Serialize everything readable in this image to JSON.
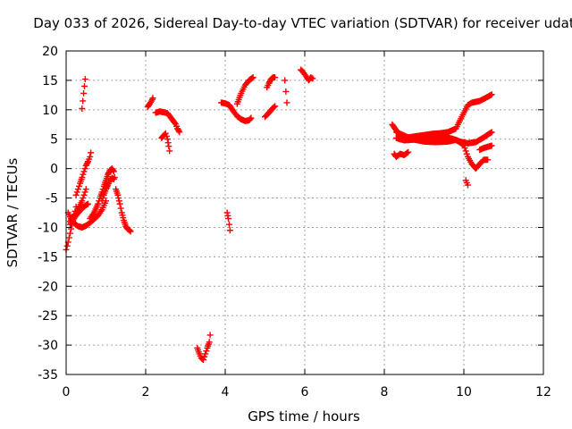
{
  "chart_data": {
    "type": "scatter",
    "title": "Day 033 of 2026, Sidereal Day-to-day VTEC variation (SDTVAR) for receiver udat",
    "xlabel": "GPS time / hours",
    "ylabel": "SDTVAR / TECUs",
    "xlim": [
      0,
      12
    ],
    "ylim": [
      -35,
      20
    ],
    "x_ticks": [
      0,
      2,
      4,
      6,
      8,
      10,
      12
    ],
    "y_ticks": [
      -35,
      -30,
      -25,
      -20,
      -15,
      -10,
      -5,
      0,
      5,
      10,
      15,
      20
    ],
    "grid": true,
    "marker": "plus",
    "color": "#ff0000",
    "tracks": [
      [
        [
          0.0,
          -13.8
        ],
        [
          0.05,
          -12.5
        ],
        [
          0.1,
          -11.0
        ],
        [
          0.15,
          -9.5
        ],
        [
          0.2,
          -8.0
        ],
        [
          0.25,
          -6.5
        ]
      ],
      [
        [
          0.05,
          -7.5
        ],
        [
          0.1,
          -8.2
        ],
        [
          0.15,
          -8.8
        ],
        [
          0.2,
          -9.3
        ],
        [
          0.3,
          -9.8
        ],
        [
          0.4,
          -10.0
        ],
        [
          0.5,
          -9.7
        ],
        [
          0.6,
          -9.2
        ],
        [
          0.7,
          -8.6
        ],
        [
          0.8,
          -8.0
        ],
        [
          0.9,
          -7.0
        ],
        [
          1.0,
          -5.5
        ]
      ],
      [
        [
          0.1,
          -9.5
        ],
        [
          0.2,
          -8.5
        ],
        [
          0.3,
          -7.5
        ],
        [
          0.4,
          -6.8
        ],
        [
          0.5,
          -6.2
        ],
        [
          0.55,
          -6.0
        ]
      ],
      [
        [
          0.25,
          -4.5
        ],
        [
          0.3,
          -3.5
        ],
        [
          0.35,
          -2.5
        ],
        [
          0.4,
          -1.5
        ],
        [
          0.45,
          -0.5
        ],
        [
          0.5,
          0.5
        ],
        [
          0.55,
          1.2
        ],
        [
          0.6,
          2.0
        ],
        [
          0.62,
          2.7
        ]
      ],
      [
        [
          0.1,
          -9.0
        ],
        [
          0.2,
          -8.0
        ],
        [
          0.3,
          -7.0
        ],
        [
          0.4,
          -5.5
        ],
        [
          0.5,
          -3.5
        ]
      ],
      [
        [
          0.4,
          10.2
        ],
        [
          0.42,
          11.5
        ],
        [
          0.44,
          12.8
        ],
        [
          0.46,
          14.0
        ],
        [
          0.48,
          15.2
        ]
      ],
      [
        [
          0.6,
          -8.5
        ],
        [
          0.7,
          -7.5
        ],
        [
          0.8,
          -6.0
        ],
        [
          0.85,
          -5.0
        ],
        [
          0.9,
          -4.0
        ],
        [
          0.95,
          -3.0
        ],
        [
          1.0,
          -2.0
        ],
        [
          1.05,
          -1.0
        ],
        [
          1.1,
          -0.3
        ],
        [
          1.15,
          0.0
        ],
        [
          1.2,
          -0.5
        ],
        [
          1.22,
          -1.5
        ]
      ],
      [
        [
          0.9,
          -5.5
        ],
        [
          0.95,
          -4.5
        ],
        [
          1.0,
          -3.5
        ],
        [
          1.05,
          -2.8
        ],
        [
          1.1,
          -2.0
        ],
        [
          1.15,
          -1.6
        ],
        [
          1.2,
          -1.8
        ]
      ],
      [
        [
          1.25,
          -3.5
        ],
        [
          1.3,
          -4.5
        ],
        [
          1.35,
          -6.0
        ],
        [
          1.4,
          -7.5
        ],
        [
          1.45,
          -8.8
        ],
        [
          1.5,
          -9.8
        ],
        [
          1.55,
          -10.3
        ],
        [
          1.6,
          -10.5
        ],
        [
          1.62,
          -10.7
        ]
      ],
      [
        [
          2.05,
          10.5
        ],
        [
          2.1,
          11.0
        ],
        [
          2.15,
          11.5
        ],
        [
          2.18,
          12.0
        ]
      ],
      [
        [
          2.25,
          9.5
        ],
        [
          2.35,
          9.7
        ],
        [
          2.45,
          9.6
        ],
        [
          2.55,
          9.4
        ],
        [
          2.65,
          8.5
        ],
        [
          2.75,
          7.6
        ],
        [
          2.8,
          6.8
        ],
        [
          2.85,
          6.2
        ]
      ],
      [
        [
          2.4,
          5.2
        ],
        [
          2.45,
          5.6
        ],
        [
          2.5,
          6.0
        ],
        [
          2.55,
          5.0
        ],
        [
          2.58,
          3.8
        ],
        [
          2.6,
          3.0
        ]
      ],
      [
        [
          3.3,
          -30.5
        ],
        [
          3.35,
          -31.5
        ],
        [
          3.4,
          -32.2
        ],
        [
          3.45,
          -32.5
        ],
        [
          3.5,
          -31.5
        ],
        [
          3.55,
          -30.5
        ],
        [
          3.6,
          -29.5
        ],
        [
          3.62,
          -28.3
        ]
      ],
      [
        [
          3.9,
          11.2
        ],
        [
          4.0,
          11.1
        ],
        [
          4.1,
          10.8
        ],
        [
          4.2,
          9.8
        ],
        [
          4.3,
          8.9
        ],
        [
          4.4,
          8.4
        ],
        [
          4.5,
          8.1
        ],
        [
          4.6,
          8.2
        ],
        [
          4.65,
          8.6
        ]
      ],
      [
        [
          4.05,
          -7.5
        ],
        [
          4.08,
          -8.5
        ],
        [
          4.1,
          -9.5
        ],
        [
          4.12,
          -10.5
        ]
      ],
      [
        [
          4.3,
          11.0
        ],
        [
          4.4,
          12.8
        ],
        [
          4.5,
          14.2
        ],
        [
          4.6,
          15.0
        ],
        [
          4.7,
          15.5
        ]
      ],
      [
        [
          5.0,
          8.8
        ],
        [
          5.1,
          9.5
        ],
        [
          5.2,
          10.3
        ],
        [
          5.25,
          10.6
        ]
      ],
      [
        [
          5.05,
          13.8
        ],
        [
          5.1,
          14.5
        ],
        [
          5.15,
          15.2
        ],
        [
          5.2,
          15.5
        ],
        [
          5.25,
          15.5
        ]
      ],
      [
        [
          5.5,
          15.0
        ],
        [
          5.55,
          11.2
        ]
      ],
      [
        [
          5.9,
          16.8
        ],
        [
          5.95,
          16.5
        ],
        [
          6.0,
          16.0
        ],
        [
          6.05,
          15.5
        ],
        [
          6.1,
          15.0
        ],
        [
          6.15,
          15.5
        ],
        [
          6.2,
          15.3
        ]
      ],
      [
        [
          8.2,
          7.5
        ],
        [
          8.3,
          6.5
        ],
        [
          8.4,
          5.6
        ],
        [
          8.6,
          5.3
        ],
        [
          8.8,
          5.5
        ],
        [
          9.0,
          5.7
        ],
        [
          9.2,
          5.9
        ],
        [
          9.4,
          6.0
        ],
        [
          9.6,
          6.2
        ],
        [
          9.8,
          6.8
        ],
        [
          10.0,
          9.5
        ],
        [
          10.1,
          10.8
        ],
        [
          10.2,
          11.2
        ],
        [
          10.4,
          11.5
        ],
        [
          10.6,
          12.2
        ],
        [
          10.7,
          12.6
        ]
      ],
      [
        [
          8.3,
          5.2
        ],
        [
          8.5,
          4.8
        ],
        [
          8.7,
          4.9
        ],
        [
          8.9,
          5.0
        ],
        [
          9.1,
          5.3
        ],
        [
          9.3,
          5.5
        ],
        [
          9.5,
          5.4
        ],
        [
          9.7,
          5.1
        ],
        [
          9.9,
          4.6
        ],
        [
          10.1,
          4.3
        ],
        [
          10.3,
          4.5
        ],
        [
          10.5,
          5.3
        ],
        [
          10.7,
          6.2
        ]
      ],
      [
        [
          8.3,
          6.2
        ],
        [
          8.5,
          5.6
        ],
        [
          8.7,
          5.0
        ],
        [
          9.0,
          4.6
        ],
        [
          9.3,
          4.5
        ],
        [
          9.6,
          4.6
        ],
        [
          9.8,
          4.9
        ],
        [
          10.0,
          4.0
        ],
        [
          10.1,
          2.0
        ],
        [
          10.2,
          0.8
        ],
        [
          10.3,
          0.0
        ],
        [
          10.4,
          0.8
        ],
        [
          10.5,
          1.5
        ],
        [
          10.6,
          1.5
        ]
      ],
      [
        [
          8.25,
          2.5
        ],
        [
          8.3,
          2.0
        ],
        [
          8.4,
          2.5
        ],
        [
          8.5,
          2.3
        ],
        [
          8.6,
          2.8
        ]
      ],
      [
        [
          10.05,
          -2.0
        ],
        [
          10.1,
          -2.8
        ]
      ],
      [
        [
          10.4,
          3.2
        ],
        [
          10.5,
          3.5
        ],
        [
          10.6,
          3.7
        ],
        [
          10.7,
          3.9
        ]
      ]
    ]
  }
}
